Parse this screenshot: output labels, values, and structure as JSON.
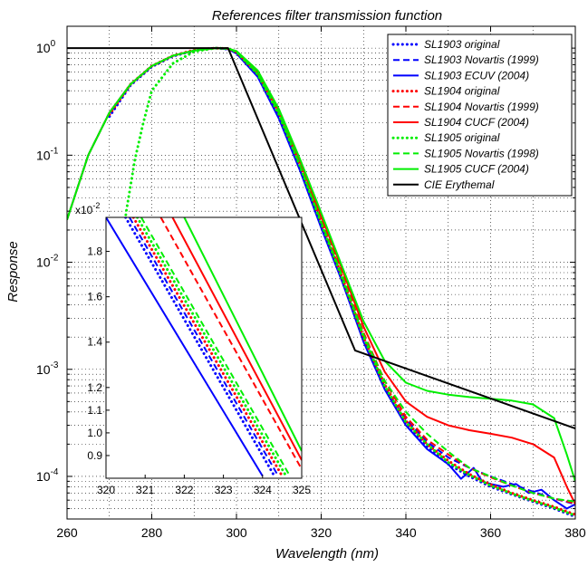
{
  "chart_data": {
    "type": "line",
    "title": "References filter transmission function",
    "xlabel": "Wavelength (nm)",
    "ylabel": "Response",
    "xlim": [
      260,
      380
    ],
    "ylim": [
      4e-05,
      1.6
    ],
    "yscale": "log",
    "grid": true,
    "legend_position": "top-right",
    "xticks": [
      "260",
      "280",
      "300",
      "320",
      "340",
      "360",
      "380"
    ],
    "yticks": [
      {
        "value": 1,
        "mantissa": "10",
        "exp": "0"
      },
      {
        "value": 0.1,
        "mantissa": "10",
        "exp": "-1"
      },
      {
        "value": 0.01,
        "mantissa": "10",
        "exp": "-2"
      },
      {
        "value": 0.001,
        "mantissa": "10",
        "exp": "-3"
      },
      {
        "value": 0.0001,
        "mantissa": "10",
        "exp": "-4"
      }
    ],
    "series": [
      {
        "name": "SL1903 original",
        "color": "#0000ff",
        "dash": "dot",
        "x": [
          270,
          275,
          280,
          285,
          290,
          295,
          298,
          300,
          305,
          310,
          315,
          320,
          325,
          330,
          335,
          340,
          345,
          350,
          355,
          360,
          365,
          370,
          375,
          380
        ],
        "y": [
          0.23,
          0.45,
          0.67,
          0.84,
          0.95,
          1.0,
          0.98,
          0.9,
          0.55,
          0.23,
          0.075,
          0.022,
          0.0068,
          0.0019,
          0.00068,
          0.00031,
          0.00019,
          0.00013,
          0.0001,
          8e-05,
          6.8e-05,
          5.8e-05,
          5e-05,
          4.2e-05
        ]
      },
      {
        "name": "SL1903 Novartis (1999)",
        "color": "#0000ff",
        "dash": "dash",
        "x": [
          260,
          265,
          270,
          275,
          280,
          285,
          290,
          295,
          298,
          300,
          305,
          310,
          315,
          320,
          325,
          330,
          335,
          340,
          345,
          350,
          355,
          360,
          365,
          370,
          375,
          380
        ],
        "y": [
          0.025,
          0.1,
          0.25,
          0.46,
          0.68,
          0.85,
          0.95,
          1.0,
          0.98,
          0.9,
          0.55,
          0.23,
          0.075,
          0.022,
          0.0068,
          0.0019,
          0.00068,
          0.00034,
          0.00021,
          0.00015,
          0.00012,
          0.0001,
          8.5e-05,
          7.2e-05,
          6.2e-05,
          5.5e-05
        ]
      },
      {
        "name": "SL1903 ECUV (2004)",
        "color": "#0000ff",
        "dash": "solid",
        "x": [
          260,
          265,
          270,
          275,
          280,
          285,
          290,
          295,
          298,
          300,
          305,
          310,
          315,
          320,
          325,
          330,
          335,
          340,
          345,
          350,
          353,
          356,
          358,
          360,
          363,
          366,
          369,
          372,
          375,
          378,
          380
        ],
        "y": [
          0.025,
          0.1,
          0.25,
          0.46,
          0.68,
          0.85,
          0.95,
          1.0,
          0.98,
          0.89,
          0.54,
          0.22,
          0.072,
          0.021,
          0.0065,
          0.0018,
          0.00065,
          0.0003,
          0.00018,
          0.00013,
          9.5e-05,
          0.00012,
          9e-05,
          8.5e-05,
          8e-05,
          8.5e-05,
          7e-05,
          7.5e-05,
          6e-05,
          5e-05,
          5.5e-05
        ]
      },
      {
        "name": "SL1904 original",
        "color": "#ff0000",
        "dash": "dot",
        "x": [
          270,
          275,
          280,
          285,
          290,
          295,
          298,
          300,
          305,
          310,
          315,
          320,
          325,
          330,
          335,
          340,
          345,
          350,
          355,
          360,
          365,
          370,
          375,
          380
        ],
        "y": [
          0.24,
          0.46,
          0.68,
          0.85,
          0.96,
          1.0,
          0.99,
          0.92,
          0.58,
          0.25,
          0.082,
          0.024,
          0.0072,
          0.002,
          0.00072,
          0.00033,
          0.0002,
          0.00014,
          0.000105,
          8.4e-05,
          7e-05,
          6e-05,
          5.2e-05,
          4.4e-05
        ]
      },
      {
        "name": "SL1904 Novartis (1999)",
        "color": "#ff0000",
        "dash": "dash",
        "x": [
          260,
          265,
          270,
          275,
          280,
          285,
          290,
          295,
          298,
          300,
          305,
          310,
          315,
          320,
          325,
          330,
          335,
          340,
          345,
          350,
          355,
          360,
          365,
          370,
          375,
          380
        ],
        "y": [
          0.025,
          0.1,
          0.25,
          0.46,
          0.68,
          0.85,
          0.95,
          1.0,
          0.99,
          0.92,
          0.58,
          0.25,
          0.083,
          0.025,
          0.0078,
          0.0022,
          0.00078,
          0.00036,
          0.00022,
          0.00016,
          0.00012,
          9.8e-05,
          8.2e-05,
          7e-05,
          6.2e-05,
          5.6e-05
        ]
      },
      {
        "name": "SL1904 CUCF (2004)",
        "color": "#ff0000",
        "dash": "solid",
        "x": [
          260,
          265,
          270,
          275,
          280,
          285,
          290,
          295,
          298,
          300,
          305,
          310,
          315,
          320,
          325,
          330,
          335,
          340,
          345,
          350,
          355,
          360,
          365,
          370,
          375,
          378,
          380
        ],
        "y": [
          0.025,
          0.1,
          0.25,
          0.46,
          0.68,
          0.85,
          0.95,
          1.0,
          0.99,
          0.93,
          0.6,
          0.26,
          0.088,
          0.027,
          0.0085,
          0.0025,
          0.00095,
          0.0005,
          0.00036,
          0.0003,
          0.00027,
          0.00025,
          0.00023,
          0.0002,
          0.00015,
          8e-05,
          5.5e-05
        ]
      },
      {
        "name": "SL1905 original",
        "color": "#00ee00",
        "dash": "dot",
        "x": [
          270,
          272,
          274,
          276,
          278,
          280,
          285,
          290,
          295,
          298,
          300,
          305,
          310,
          315,
          320,
          325,
          330,
          335,
          340,
          345,
          350,
          355,
          360,
          365,
          370,
          375,
          380
        ],
        "y": [
          0.0013,
          0.007,
          0.03,
          0.09,
          0.2,
          0.4,
          0.72,
          0.93,
          1.0,
          0.99,
          0.92,
          0.57,
          0.24,
          0.079,
          0.023,
          0.007,
          0.002,
          0.0007,
          0.00032,
          0.0002,
          0.000135,
          0.000103,
          8.2e-05,
          6.9e-05,
          5.9e-05,
          5.1e-05,
          4.3e-05
        ]
      },
      {
        "name": "SL1905 Novartis (1998)",
        "color": "#00ee00",
        "dash": "dash",
        "x": [
          260,
          265,
          270,
          275,
          280,
          285,
          290,
          295,
          298,
          300,
          305,
          310,
          315,
          320,
          325,
          330,
          335,
          340,
          345,
          350,
          355,
          360,
          365,
          370,
          375,
          380
        ],
        "y": [
          0.025,
          0.1,
          0.25,
          0.46,
          0.68,
          0.85,
          0.95,
          1.0,
          0.99,
          0.93,
          0.58,
          0.25,
          0.08,
          0.024,
          0.0074,
          0.0021,
          0.00078,
          0.0004,
          0.00025,
          0.00017,
          0.00012,
          0.0001,
          8.2e-05,
          7e-05,
          6.2e-05,
          5.8e-05
        ]
      },
      {
        "name": "SL1905 CUCF (2004)",
        "color": "#00ee00",
        "dash": "solid",
        "x": [
          260,
          265,
          270,
          275,
          280,
          285,
          290,
          295,
          298,
          300,
          305,
          310,
          315,
          320,
          325,
          330,
          335,
          340,
          345,
          350,
          355,
          360,
          365,
          370,
          375,
          378,
          380
        ],
        "y": [
          0.025,
          0.1,
          0.25,
          0.46,
          0.68,
          0.85,
          0.95,
          1.0,
          0.99,
          0.94,
          0.62,
          0.27,
          0.092,
          0.029,
          0.009,
          0.0028,
          0.0012,
          0.00075,
          0.00063,
          0.00058,
          0.00055,
          0.00053,
          0.00051,
          0.00047,
          0.00035,
          0.00016,
          9e-05
        ]
      },
      {
        "name": "CIE Erythemal",
        "color": "#000000",
        "dash": "solid",
        "x": [
          260,
          298,
          328,
          380
        ],
        "y": [
          1,
          1,
          0.0015,
          0.00028
        ]
      }
    ],
    "inset": {
      "xlim": [
        320,
        325
      ],
      "ylim": [
        0.008,
        0.0195
      ],
      "yscale": "linear",
      "multiplier": {
        "mantissa": "x10",
        "exp": "-2"
      },
      "xticks": [
        "320",
        "321",
        "322",
        "323",
        "324",
        "325"
      ],
      "ytick_values": [
        0.009,
        0.01,
        0.011,
        0.012,
        0.014,
        0.016,
        0.018
      ],
      "ytick_labels": [
        "0.9",
        "1.0",
        "1.1",
        "1.2",
        "1.4",
        "1.6",
        "1.8"
      ],
      "series": [
        {
          "name": "SL1903 ECUV (2004)",
          "color": "#0000ff",
          "dash": "solid",
          "x": [
            320,
            324
          ],
          "y": [
            0.0195,
            0.0081
          ]
        },
        {
          "name": "SL1903 original",
          "color": "#0000ff",
          "dash": "dot",
          "x": [
            320.5,
            324.3
          ],
          "y": [
            0.0195,
            0.0081
          ]
        },
        {
          "name": "SL1903 Novartis (1999)",
          "color": "#0000ff",
          "dash": "dash",
          "x": [
            320.6,
            324.4
          ],
          "y": [
            0.0195,
            0.0081
          ]
        },
        {
          "name": "SL1904 original",
          "color": "#ff0000",
          "dash": "dot",
          "x": [
            320.7,
            324.5
          ],
          "y": [
            0.0195,
            0.0081
          ]
        },
        {
          "name": "SL1905 original",
          "color": "#00ee00",
          "dash": "dot",
          "x": [
            320.8,
            324.6
          ],
          "y": [
            0.0195,
            0.0081
          ]
        },
        {
          "name": "SL1905 Novartis (1998)",
          "color": "#00ee00",
          "dash": "dash",
          "x": [
            320.9,
            324.7
          ],
          "y": [
            0.0195,
            0.0081
          ]
        },
        {
          "name": "SL1904 Novartis (1999)",
          "color": "#ff0000",
          "dash": "dash",
          "x": [
            321.4,
            325
          ],
          "y": [
            0.0195,
            0.0084
          ]
        },
        {
          "name": "SL1904 CUCF (2004)",
          "color": "#ff0000",
          "dash": "solid",
          "x": [
            321.7,
            325
          ],
          "y": [
            0.0195,
            0.0088
          ]
        },
        {
          "name": "SL1905 CUCF (2004)",
          "color": "#00ee00",
          "dash": "solid",
          "x": [
            322.0,
            325
          ],
          "y": [
            0.0195,
            0.0092
          ]
        }
      ]
    }
  }
}
